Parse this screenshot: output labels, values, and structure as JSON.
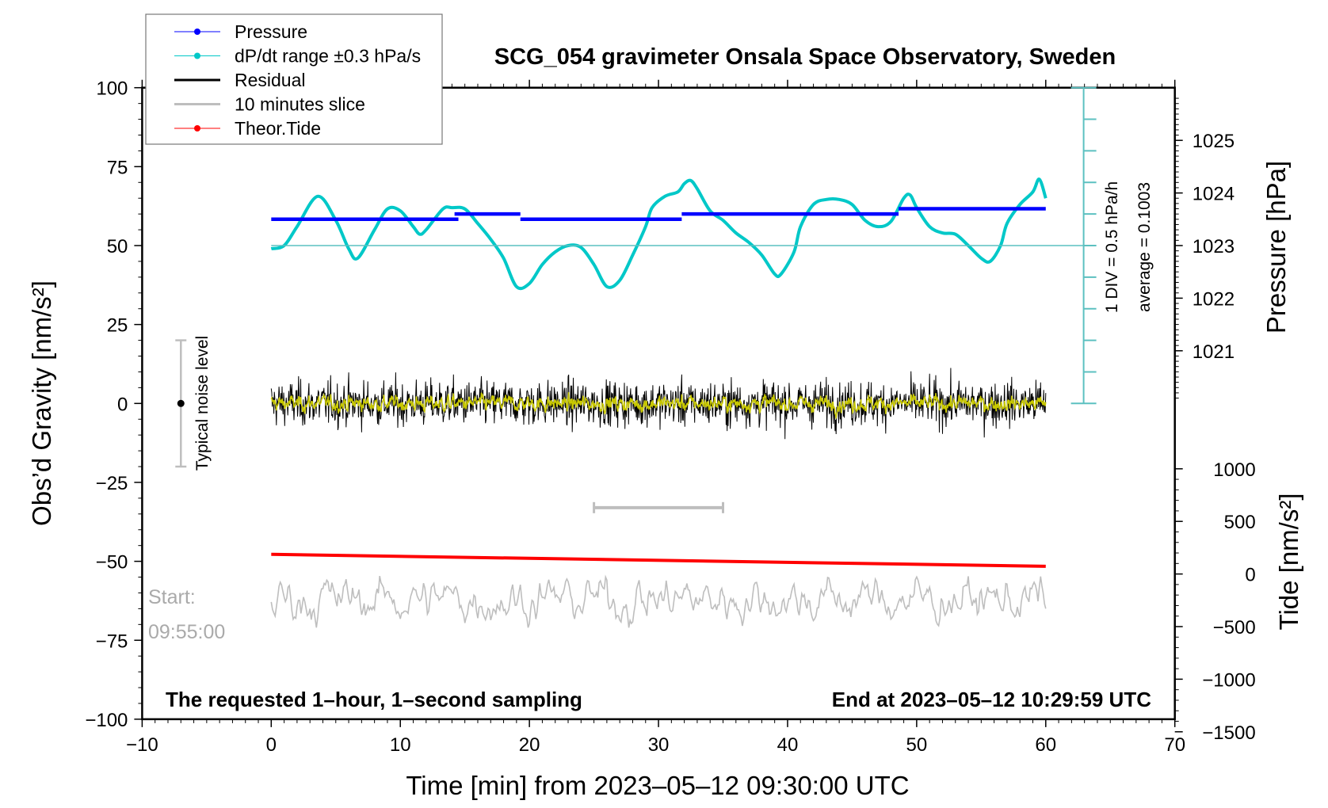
{
  "chart_data": {
    "type": "line",
    "title": "SCG_054 gravimeter Onsala Space Observatory, Sweden",
    "xlabel": "Time [min] from 2023–05–12 09:30:00 UTC",
    "ylabel_left": "Obs’d Gravity [nm/s²]",
    "ylabel_right_top": "Pressure [hPa]",
    "ylabel_right_bottom": "Tide [nm/s²]",
    "xlim": [
      -10,
      70
    ],
    "xticks": [
      -10,
      0,
      10,
      20,
      30,
      40,
      50,
      60,
      70
    ],
    "xtick_labels": [
      "−10",
      "0",
      "10",
      "20",
      "30",
      "40",
      "50",
      "60",
      "70"
    ],
    "ylim_left": [
      -100,
      100
    ],
    "yticks_left": [
      100,
      75,
      50,
      25,
      0,
      -25,
      -50,
      -75,
      -100
    ],
    "ytick_labels_left": [
      "100",
      "75",
      "50",
      "25",
      "0",
      "−25",
      "−50",
      "−75",
      "−100"
    ],
    "pressure_ticks": [
      1025,
      1024,
      1023,
      1022,
      1021
    ],
    "pressure_tick_labels": [
      "1025",
      "1024",
      "1023",
      "1022",
      "1021"
    ],
    "tide_ticks": [
      1000,
      500,
      0,
      -500,
      -1000,
      -1500
    ],
    "tide_tick_labels": [
      "1000",
      "500",
      "0",
      "−500",
      "−1000",
      "−1500"
    ],
    "legend": {
      "placement": "top-left",
      "entries": [
        {
          "label": "Pressure",
          "color": "#0000ff",
          "marker": true
        },
        {
          "label": "dP/dt range ±0.3 hPa/s",
          "color": "#00c8c8",
          "marker": true
        },
        {
          "label": "Residual",
          "color": "#000000",
          "marker": false
        },
        {
          "label": "10 minutes slice",
          "color": "#bebebe",
          "marker": false
        },
        {
          "label": "Theor.Tide",
          "color": "#ff0000",
          "marker": true
        }
      ]
    },
    "series": {
      "pressure": {
        "name": "Pressure",
        "unit": "hPa",
        "color": "#0000ff",
        "segments": [
          {
            "x": [
              0,
              14.5
            ],
            "y": 1023.5
          },
          {
            "x": [
              14.2,
              19.3
            ],
            "y": 1023.6
          },
          {
            "x": [
              19.3,
              31.8
            ],
            "y": 1023.5
          },
          {
            "x": [
              31.8,
              48.6
            ],
            "y": 1023.6
          },
          {
            "x": [
              48.6,
              60
            ],
            "y": 1023.7
          }
        ]
      },
      "dpdt": {
        "name": "dP/dt",
        "unit": "hPa/h (1 DIV = 0.5 hPa/h, centred at pressure 1023 line)",
        "color": "#00c8c8",
        "x": [
          0,
          1,
          2,
          3.6,
          5,
          6,
          6.7,
          8,
          9,
          10,
          11,
          11.5,
          12,
          13.3,
          14,
          15,
          16,
          17,
          18,
          19,
          20,
          21,
          22,
          23,
          24,
          25,
          26,
          27,
          28,
          29,
          29.5,
          30.5,
          31.5,
          32,
          32.5,
          33,
          34,
          35,
          36,
          37,
          38,
          39,
          39.5,
          40.5,
          41,
          42,
          43,
          44,
          45,
          46,
          47,
          48,
          49,
          49.5,
          50,
          51,
          52,
          53,
          54,
          55,
          55.7,
          56.5,
          57,
          58,
          59,
          59.5,
          60
        ],
        "y": [
          -0.05,
          0,
          0.3,
          0.78,
          0.4,
          -0.05,
          -0.2,
          0.25,
          0.58,
          0.55,
          0.3,
          0.18,
          0.25,
          0.58,
          0.6,
          0.58,
          0.35,
          0.1,
          -0.2,
          -0.65,
          -0.6,
          -0.3,
          -0.1,
          0,
          -0.03,
          -0.3,
          -0.65,
          -0.55,
          -0.15,
          0.3,
          0.6,
          0.78,
          0.85,
          0.98,
          1.03,
          0.9,
          0.55,
          0.4,
          0.2,
          0.05,
          -0.15,
          -0.45,
          -0.45,
          -0.1,
          0.3,
          0.65,
          0.73,
          0.73,
          0.65,
          0.4,
          0.3,
          0.38,
          0.75,
          0.8,
          0.6,
          0.3,
          0.2,
          0.18,
          0,
          -0.2,
          -0.25,
          0,
          0.35,
          0.65,
          0.85,
          1.05,
          0.75
        ]
      },
      "residual": {
        "name": "Residual",
        "unit": "nm/s²",
        "color": "#000000",
        "x_range": [
          0,
          60
        ],
        "approx_range": [
          -13,
          14
        ]
      },
      "residual_smoothed": {
        "name": "Residual (smoothed)",
        "color": "#c8c800",
        "approx_range": [
          -5,
          5
        ]
      },
      "slice": {
        "name": "10 minutes slice",
        "color": "#bebebe",
        "x_range": [
          0,
          60
        ],
        "offset_nm_s2": -62,
        "approx_range": [
          -71,
          -53
        ]
      },
      "tide": {
        "name": "Theor.Tide",
        "unit": "nm/s²",
        "color": "#ff0000",
        "x": [
          0,
          60
        ],
        "y": [
          187,
          73
        ]
      }
    },
    "slice_marker": {
      "x": [
        25,
        35
      ],
      "y": -33
    },
    "noise_level_bar": {
      "x": -7,
      "y": [
        -20,
        20
      ],
      "center": 0,
      "label": "Typical noise level"
    },
    "dpdt_axis": {
      "div_label": "1 DIV = 0.5 hPa/h",
      "average_label": "average = 0.1003",
      "divisions": 10
    },
    "annotations": {
      "start_label": "Start:",
      "start_time": "09:55:00",
      "sampling": "The requested 1–hour, 1–second sampling",
      "end": "End at 2023–05–12 10:29:59 UTC"
    }
  }
}
